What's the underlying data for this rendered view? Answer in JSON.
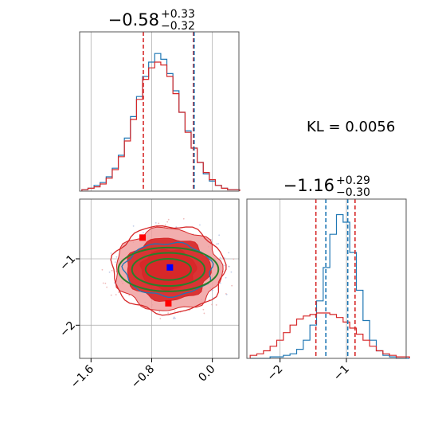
{
  "figure": {
    "kl_label": "KL = 0.0056",
    "title_x": {
      "value": "−0.58",
      "plus": "+0.33",
      "minus": "−0.32"
    },
    "title_y": {
      "value": "−1.16",
      "plus": "+0.29",
      "minus": "−0.30"
    }
  },
  "colors": {
    "red": "#d62728",
    "blue": "#1f77b4",
    "green": "#2a7f2a",
    "light_red": "#f0a0a0",
    "grid": "#b0b0b0"
  },
  "chart_data": {
    "type": "corner",
    "x_axis": {
      "range": [
        -1.75,
        0.35
      ],
      "ticks": [
        -1.6,
        -0.8,
        0.0
      ],
      "tick_labels": [
        "−1.6",
        "−0.8",
        "0.0"
      ]
    },
    "y_axis": {
      "range": [
        -2.5,
        -0.1
      ],
      "ticks": [
        -2,
        -1
      ],
      "tick_labels": [
        "−2",
        "−1"
      ]
    },
    "marginal_x": {
      "bins": [
        -1.72,
        -1.64,
        -1.56,
        -1.48,
        -1.4,
        -1.32,
        -1.24,
        -1.16,
        -1.08,
        -1.0,
        -0.92,
        -0.84,
        -0.76,
        -0.68,
        -0.6,
        -0.52,
        -0.44,
        -0.36,
        -0.28,
        -0.2,
        -0.12,
        -0.04,
        0.04,
        0.12,
        0.2,
        0.28
      ],
      "series": [
        {
          "color": "blue",
          "values": [
            0.01,
            0.02,
            0.04,
            0.06,
            0.1,
            0.16,
            0.25,
            0.37,
            0.52,
            0.66,
            0.8,
            0.9,
            0.96,
            0.92,
            0.82,
            0.7,
            0.55,
            0.42,
            0.3,
            0.2,
            0.12,
            0.07,
            0.04,
            0.02,
            0.01,
            0.01
          ]
        },
        {
          "color": "red",
          "values": [
            0.01,
            0.02,
            0.03,
            0.05,
            0.09,
            0.15,
            0.24,
            0.35,
            0.5,
            0.64,
            0.78,
            0.86,
            0.9,
            0.88,
            0.8,
            0.68,
            0.55,
            0.41,
            0.3,
            0.2,
            0.13,
            0.08,
            0.04,
            0.02,
            0.01,
            0.01
          ]
        }
      ],
      "quantile_lines": [
        {
          "color": "red",
          "value": -0.91
        },
        {
          "color": "red",
          "value": -0.25
        },
        {
          "color": "blue",
          "value": -0.24
        }
      ]
    },
    "marginal_y": {
      "bins": [
        -2.45,
        -2.35,
        -2.25,
        -2.15,
        -2.05,
        -1.95,
        -1.85,
        -1.75,
        -1.65,
        -1.55,
        -1.45,
        -1.35,
        -1.25,
        -1.15,
        -1.05,
        -0.95,
        -0.85,
        -0.75,
        -0.65,
        -0.55,
        -0.45,
        -0.35,
        -0.25,
        -0.15
      ],
      "series": [
        {
          "color": "blue",
          "values": [
            0.0,
            0.0,
            0.0,
            0.01,
            0.01,
            0.02,
            0.03,
            0.06,
            0.12,
            0.22,
            0.38,
            0.6,
            0.82,
            0.95,
            0.9,
            0.7,
            0.45,
            0.25,
            0.12,
            0.05,
            0.02,
            0.01,
            0.0,
            0.0
          ]
        },
        {
          "color": "red",
          "values": [
            0.02,
            0.03,
            0.05,
            0.08,
            0.12,
            0.17,
            0.22,
            0.26,
            0.28,
            0.29,
            0.3,
            0.3,
            0.29,
            0.27,
            0.24,
            0.2,
            0.16,
            0.12,
            0.08,
            0.05,
            0.03,
            0.02,
            0.01,
            0.01
          ]
        }
      ],
      "quantile_lines": [
        {
          "color": "red",
          "value": -1.46
        },
        {
          "color": "red",
          "value": -0.87
        },
        {
          "color": "blue",
          "value": -1.31
        },
        {
          "color": "blue",
          "value": -0.98
        }
      ]
    },
    "joint": {
      "center": {
        "x": -0.58,
        "y": -1.16
      },
      "markers": [
        {
          "color": "red",
          "x": -0.92,
          "y": -0.68
        },
        {
          "color": "red",
          "x": -0.58,
          "y": -1.67
        },
        {
          "color": "blue",
          "x": -0.56,
          "y": -1.13
        }
      ],
      "filled_contours": [
        {
          "color": "light_red",
          "rx": 0.7,
          "ry": 0.62
        },
        {
          "color": "red",
          "rx": 0.55,
          "ry": 0.47
        },
        {
          "color": "red",
          "rx": 0.36,
          "ry": 0.3
        }
      ],
      "outline_contours": [
        {
          "color": "red",
          "rx": 0.74,
          "ry": 0.66
        },
        {
          "color": "blue",
          "rx": 0.58,
          "ry": 0.4
        }
      ],
      "gaussian_ellipses": [
        {
          "color": "green",
          "rx": 0.66,
          "ry": 0.33
        },
        {
          "color": "green",
          "rx": 0.48,
          "ry": 0.25
        },
        {
          "color": "green",
          "rx": 0.3,
          "ry": 0.16
        }
      ]
    }
  }
}
